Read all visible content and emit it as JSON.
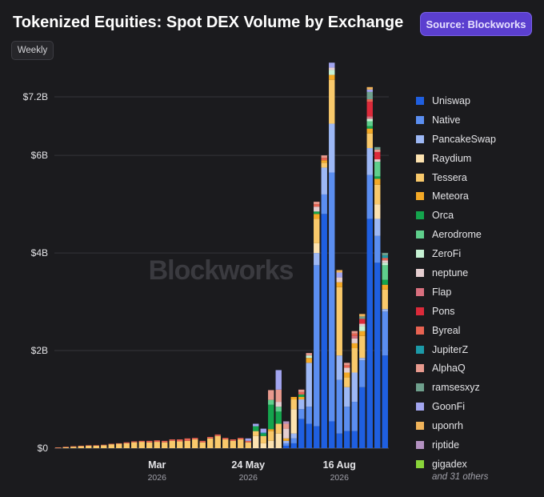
{
  "header": {
    "title": "Tokenized Equities: Spot DEX Volume by Exchange",
    "source_button": "Source: Blockworks",
    "period_button": "Weekly"
  },
  "watermark": "Blockworks",
  "legend": {
    "more_label": "and 31 others"
  },
  "chart_data": {
    "type": "bar",
    "stacked": true,
    "title": "Tokenized Equities: Spot DEX Volume by Exchange",
    "xlabel": "",
    "ylabel": "",
    "ylim": [
      0,
      7.2
    ],
    "y_unit": "billion USD",
    "yticks": [
      {
        "value": 0,
        "label": "$0"
      },
      {
        "value": 2,
        "label": "$2B"
      },
      {
        "value": 4,
        "label": "$4B"
      },
      {
        "value": 6,
        "label": "$6B"
      },
      {
        "value": 7.2,
        "label": "$7.2B"
      }
    ],
    "xticks": [
      {
        "index": 13,
        "label": "Mar",
        "sublabel": "2026"
      },
      {
        "index": 25,
        "label": "24 May",
        "sublabel": "2026"
      },
      {
        "index": 37,
        "label": "16 Aug",
        "sublabel": "2026"
      }
    ],
    "grid": "horizontal",
    "legend_position": "right",
    "series": [
      {
        "name": "Uniswap",
        "color": "#1f5fe0",
        "values": [
          0,
          0,
          0,
          0,
          0,
          0,
          0,
          0,
          0,
          0,
          0,
          0,
          0,
          0,
          0,
          0,
          0,
          0,
          0,
          0,
          0,
          0,
          0,
          0,
          0,
          0,
          0,
          0,
          0,
          0,
          0.05,
          0.1,
          0.6,
          0.5,
          0.45,
          4.8,
          0.55,
          0.3,
          0.35,
          0.35,
          1.25,
          4.7,
          3.8,
          1.9
        ]
      },
      {
        "name": "Native",
        "color": "#5b8ef0",
        "values": [
          0,
          0,
          0,
          0,
          0,
          0,
          0,
          0,
          0,
          0,
          0,
          0,
          0,
          0,
          0,
          0,
          0,
          0,
          0,
          0,
          0,
          0,
          0,
          0,
          0,
          0,
          0,
          0,
          0,
          0,
          0.05,
          0.1,
          0.2,
          0.35,
          3.3,
          0.4,
          5.1,
          1.1,
          0.5,
          0.6,
          0.55,
          0.9,
          0.55,
          0.9
        ]
      },
      {
        "name": "PancakeSwap",
        "color": "#9db8f5",
        "values": [
          0,
          0,
          0,
          0,
          0,
          0,
          0,
          0,
          0,
          0,
          0,
          0,
          0,
          0,
          0,
          0,
          0,
          0,
          0,
          0,
          0,
          0,
          0,
          0,
          0,
          0,
          0,
          0,
          0,
          0,
          0.05,
          0.1,
          0.2,
          0.9,
          0.25,
          0.55,
          1.0,
          0.5,
          0.4,
          0.6,
          0.05,
          0.55,
          0.35,
          0.05
        ]
      },
      {
        "name": "Raydium",
        "color": "#fde3b0",
        "values": [
          0,
          0,
          0,
          0,
          0,
          0,
          0,
          0,
          0,
          0,
          0,
          0,
          0,
          0,
          0,
          0,
          0,
          0,
          0,
          0,
          0,
          0,
          0,
          0,
          0,
          0,
          0.25,
          0.1,
          0.15,
          0.3,
          0,
          0.5,
          0,
          0,
          0.2,
          0,
          0,
          0,
          0,
          0,
          0,
          0,
          0.3,
          0
        ]
      },
      {
        "name": "Tessera",
        "color": "#f9c96b",
        "values": [
          0.01,
          0.02,
          0.03,
          0.04,
          0.05,
          0.05,
          0.06,
          0.08,
          0.09,
          0.1,
          0.12,
          0.13,
          0.12,
          0.13,
          0.12,
          0.15,
          0.14,
          0.15,
          0.18,
          0.12,
          0.2,
          0.25,
          0.18,
          0.15,
          0.18,
          0.12,
          0.1,
          0.15,
          0.2,
          0.2,
          0,
          0.2,
          0,
          0,
          0.5,
          0.1,
          0.9,
          1.4,
          0.2,
          0.5,
          0.45,
          0.3,
          0.4,
          0.4
        ]
      },
      {
        "name": "Meteora",
        "color": "#f4a926",
        "values": [
          0,
          0,
          0,
          0,
          0,
          0,
          0,
          0,
          0,
          0,
          0,
          0,
          0,
          0,
          0,
          0,
          0,
          0,
          0,
          0,
          0,
          0,
          0,
          0,
          0,
          0,
          0,
          0,
          0.04,
          0,
          0.05,
          0.05,
          0.05,
          0.1,
          0.1,
          0.05,
          0.1,
          0.1,
          0.1,
          0.1,
          0.1,
          0.1,
          0.12,
          0.1
        ]
      },
      {
        "name": "Orca",
        "color": "#14a44d",
        "values": [
          0,
          0,
          0,
          0,
          0,
          0,
          0,
          0,
          0,
          0,
          0,
          0,
          0,
          0,
          0,
          0,
          0,
          0,
          0,
          0,
          0,
          0,
          0,
          0,
          0,
          0,
          0.1,
          0.05,
          0.5,
          0.25,
          0,
          0,
          0.05,
          0,
          0.05,
          0,
          0,
          0,
          0,
          0,
          0,
          0.05,
          0.05,
          0.1
        ]
      },
      {
        "name": "Aerodrome",
        "color": "#5fcf8c",
        "values": [
          0,
          0,
          0,
          0,
          0,
          0,
          0,
          0,
          0,
          0,
          0,
          0,
          0,
          0,
          0,
          0,
          0,
          0,
          0,
          0,
          0,
          0,
          0,
          0,
          0,
          0,
          0,
          0,
          0.1,
          0.1,
          0,
          0,
          0,
          0,
          0,
          0,
          0,
          0,
          0,
          0,
          0,
          0.1,
          0.3,
          0.3
        ]
      },
      {
        "name": "ZeroFi",
        "color": "#c6f2d4",
        "values": [
          0,
          0,
          0,
          0,
          0,
          0,
          0,
          0,
          0,
          0,
          0,
          0,
          0,
          0,
          0,
          0,
          0,
          0,
          0,
          0,
          0,
          0,
          0,
          0,
          0,
          0,
          0,
          0,
          0,
          0,
          0,
          0,
          0,
          0.05,
          0,
          0,
          0.1,
          0,
          0,
          0,
          0.1,
          0.05,
          0,
          0.05
        ]
      },
      {
        "name": "neptune",
        "color": "#e5ced0",
        "values": [
          0,
          0,
          0,
          0,
          0,
          0,
          0,
          0,
          0,
          0,
          0,
          0,
          0,
          0,
          0,
          0,
          0,
          0,
          0,
          0,
          0,
          0,
          0,
          0,
          0,
          0,
          0,
          0,
          0,
          0.1,
          0.2,
          0,
          0,
          0,
          0.1,
          0,
          0.05,
          0.1,
          0.1,
          0.1,
          0.05,
          0,
          0.05,
          0.05
        ]
      },
      {
        "name": "Flap",
        "color": "#d9707f",
        "values": [
          0,
          0,
          0,
          0,
          0,
          0,
          0,
          0,
          0,
          0,
          0,
          0,
          0,
          0,
          0,
          0,
          0,
          0,
          0,
          0,
          0,
          0,
          0,
          0,
          0,
          0,
          0,
          0,
          0,
          0,
          0,
          0,
          0,
          0,
          0,
          0,
          0,
          0,
          0,
          0.05,
          0,
          0.05,
          0,
          0
        ]
      },
      {
        "name": "Pons",
        "color": "#dc2a3a",
        "values": [
          0,
          0,
          0,
          0,
          0,
          0,
          0,
          0,
          0,
          0,
          0,
          0,
          0,
          0,
          0,
          0,
          0,
          0,
          0,
          0,
          0,
          0,
          0,
          0,
          0,
          0,
          0,
          0,
          0,
          0,
          0,
          0,
          0,
          0,
          0,
          0,
          0,
          0,
          0,
          0,
          0.1,
          0.3,
          0.15,
          0
        ]
      },
      {
        "name": "Byreal",
        "color": "#e86352",
        "values": [
          0.005,
          0.01,
          0.01,
          0.01,
          0.01,
          0.01,
          0.01,
          0.01,
          0.01,
          0.02,
          0.02,
          0.02,
          0.03,
          0.03,
          0.03,
          0.03,
          0.04,
          0.05,
          0.03,
          0.03,
          0.03,
          0.03,
          0.03,
          0.03,
          0.03,
          0.03,
          0,
          0,
          0,
          0,
          0,
          0,
          0.05,
          0,
          0.05,
          0.05,
          0,
          0,
          0.05,
          0.05,
          0,
          0.05,
          0,
          0.05
        ]
      },
      {
        "name": "JupiterZ",
        "color": "#1c9aa8",
        "values": [
          0,
          0,
          0,
          0,
          0,
          0,
          0,
          0,
          0,
          0,
          0,
          0,
          0,
          0,
          0,
          0,
          0,
          0,
          0,
          0,
          0,
          0,
          0,
          0,
          0,
          0,
          0,
          0.02,
          0,
          0,
          0,
          0,
          0,
          0,
          0,
          0,
          0,
          0,
          0,
          0,
          0,
          0,
          0,
          0.05
        ]
      },
      {
        "name": "AlphaQ",
        "color": "#e89a8e",
        "values": [
          0,
          0,
          0,
          0,
          0,
          0,
          0,
          0,
          0,
          0,
          0,
          0,
          0,
          0,
          0,
          0,
          0,
          0,
          0,
          0,
          0,
          0,
          0,
          0,
          0,
          0,
          0,
          0,
          0.2,
          0.25,
          0.1,
          0,
          0.05,
          0.05,
          0.05,
          0.05,
          0,
          0,
          0.05,
          0.05,
          0,
          0,
          0.05,
          0
        ]
      },
      {
        "name": "ramsesxyz",
        "color": "#6fa08d",
        "values": [
          0,
          0,
          0,
          0,
          0,
          0,
          0,
          0,
          0,
          0,
          0,
          0,
          0,
          0,
          0,
          0,
          0,
          0,
          0,
          0,
          0,
          0,
          0,
          0,
          0,
          0,
          0,
          0,
          0,
          0,
          0,
          0,
          0,
          0,
          0,
          0,
          0,
          0,
          0,
          0,
          0.05,
          0.15,
          0.05,
          0.05
        ]
      },
      {
        "name": "GoonFi",
        "color": "#a2a5ef",
        "values": [
          0,
          0,
          0,
          0,
          0,
          0,
          0,
          0,
          0,
          0,
          0,
          0,
          0,
          0,
          0,
          0,
          0,
          0,
          0,
          0,
          0,
          0,
          0,
          0,
          0,
          0.05,
          0.05,
          0.08,
          0,
          0.4,
          0,
          0,
          0,
          0,
          0,
          0,
          0.1,
          0.1,
          0,
          0,
          0,
          0.05,
          0,
          0
        ]
      },
      {
        "name": "uponrh",
        "color": "#f0b35a",
        "values": [
          0,
          0,
          0,
          0,
          0,
          0,
          0,
          0,
          0,
          0,
          0,
          0,
          0,
          0,
          0,
          0,
          0,
          0,
          0,
          0,
          0,
          0,
          0,
          0,
          0,
          0,
          0,
          0,
          0,
          0,
          0,
          0,
          0,
          0,
          0,
          0,
          0,
          0.05,
          0,
          0,
          0.05,
          0.05,
          0,
          0
        ]
      },
      {
        "name": "riptide",
        "color": "#b391c0",
        "values": [
          0,
          0,
          0,
          0,
          0,
          0,
          0,
          0,
          0,
          0,
          0,
          0,
          0,
          0,
          0,
          0,
          0,
          0,
          0,
          0,
          0,
          0,
          0,
          0,
          0,
          0,
          0,
          0,
          0,
          0,
          0.05,
          0,
          0,
          0,
          0,
          0,
          0,
          0,
          0,
          0,
          0,
          0,
          0,
          0
        ]
      },
      {
        "name": "gigadex",
        "color": "#89d43a",
        "values": [
          0,
          0,
          0,
          0,
          0,
          0,
          0,
          0,
          0,
          0,
          0,
          0,
          0,
          0,
          0,
          0,
          0,
          0,
          0,
          0,
          0,
          0,
          0,
          0,
          0,
          0,
          0,
          0,
          0,
          0,
          0,
          0,
          0,
          0,
          0,
          0,
          0,
          0,
          0,
          0,
          0,
          0,
          0,
          0
        ]
      }
    ]
  }
}
